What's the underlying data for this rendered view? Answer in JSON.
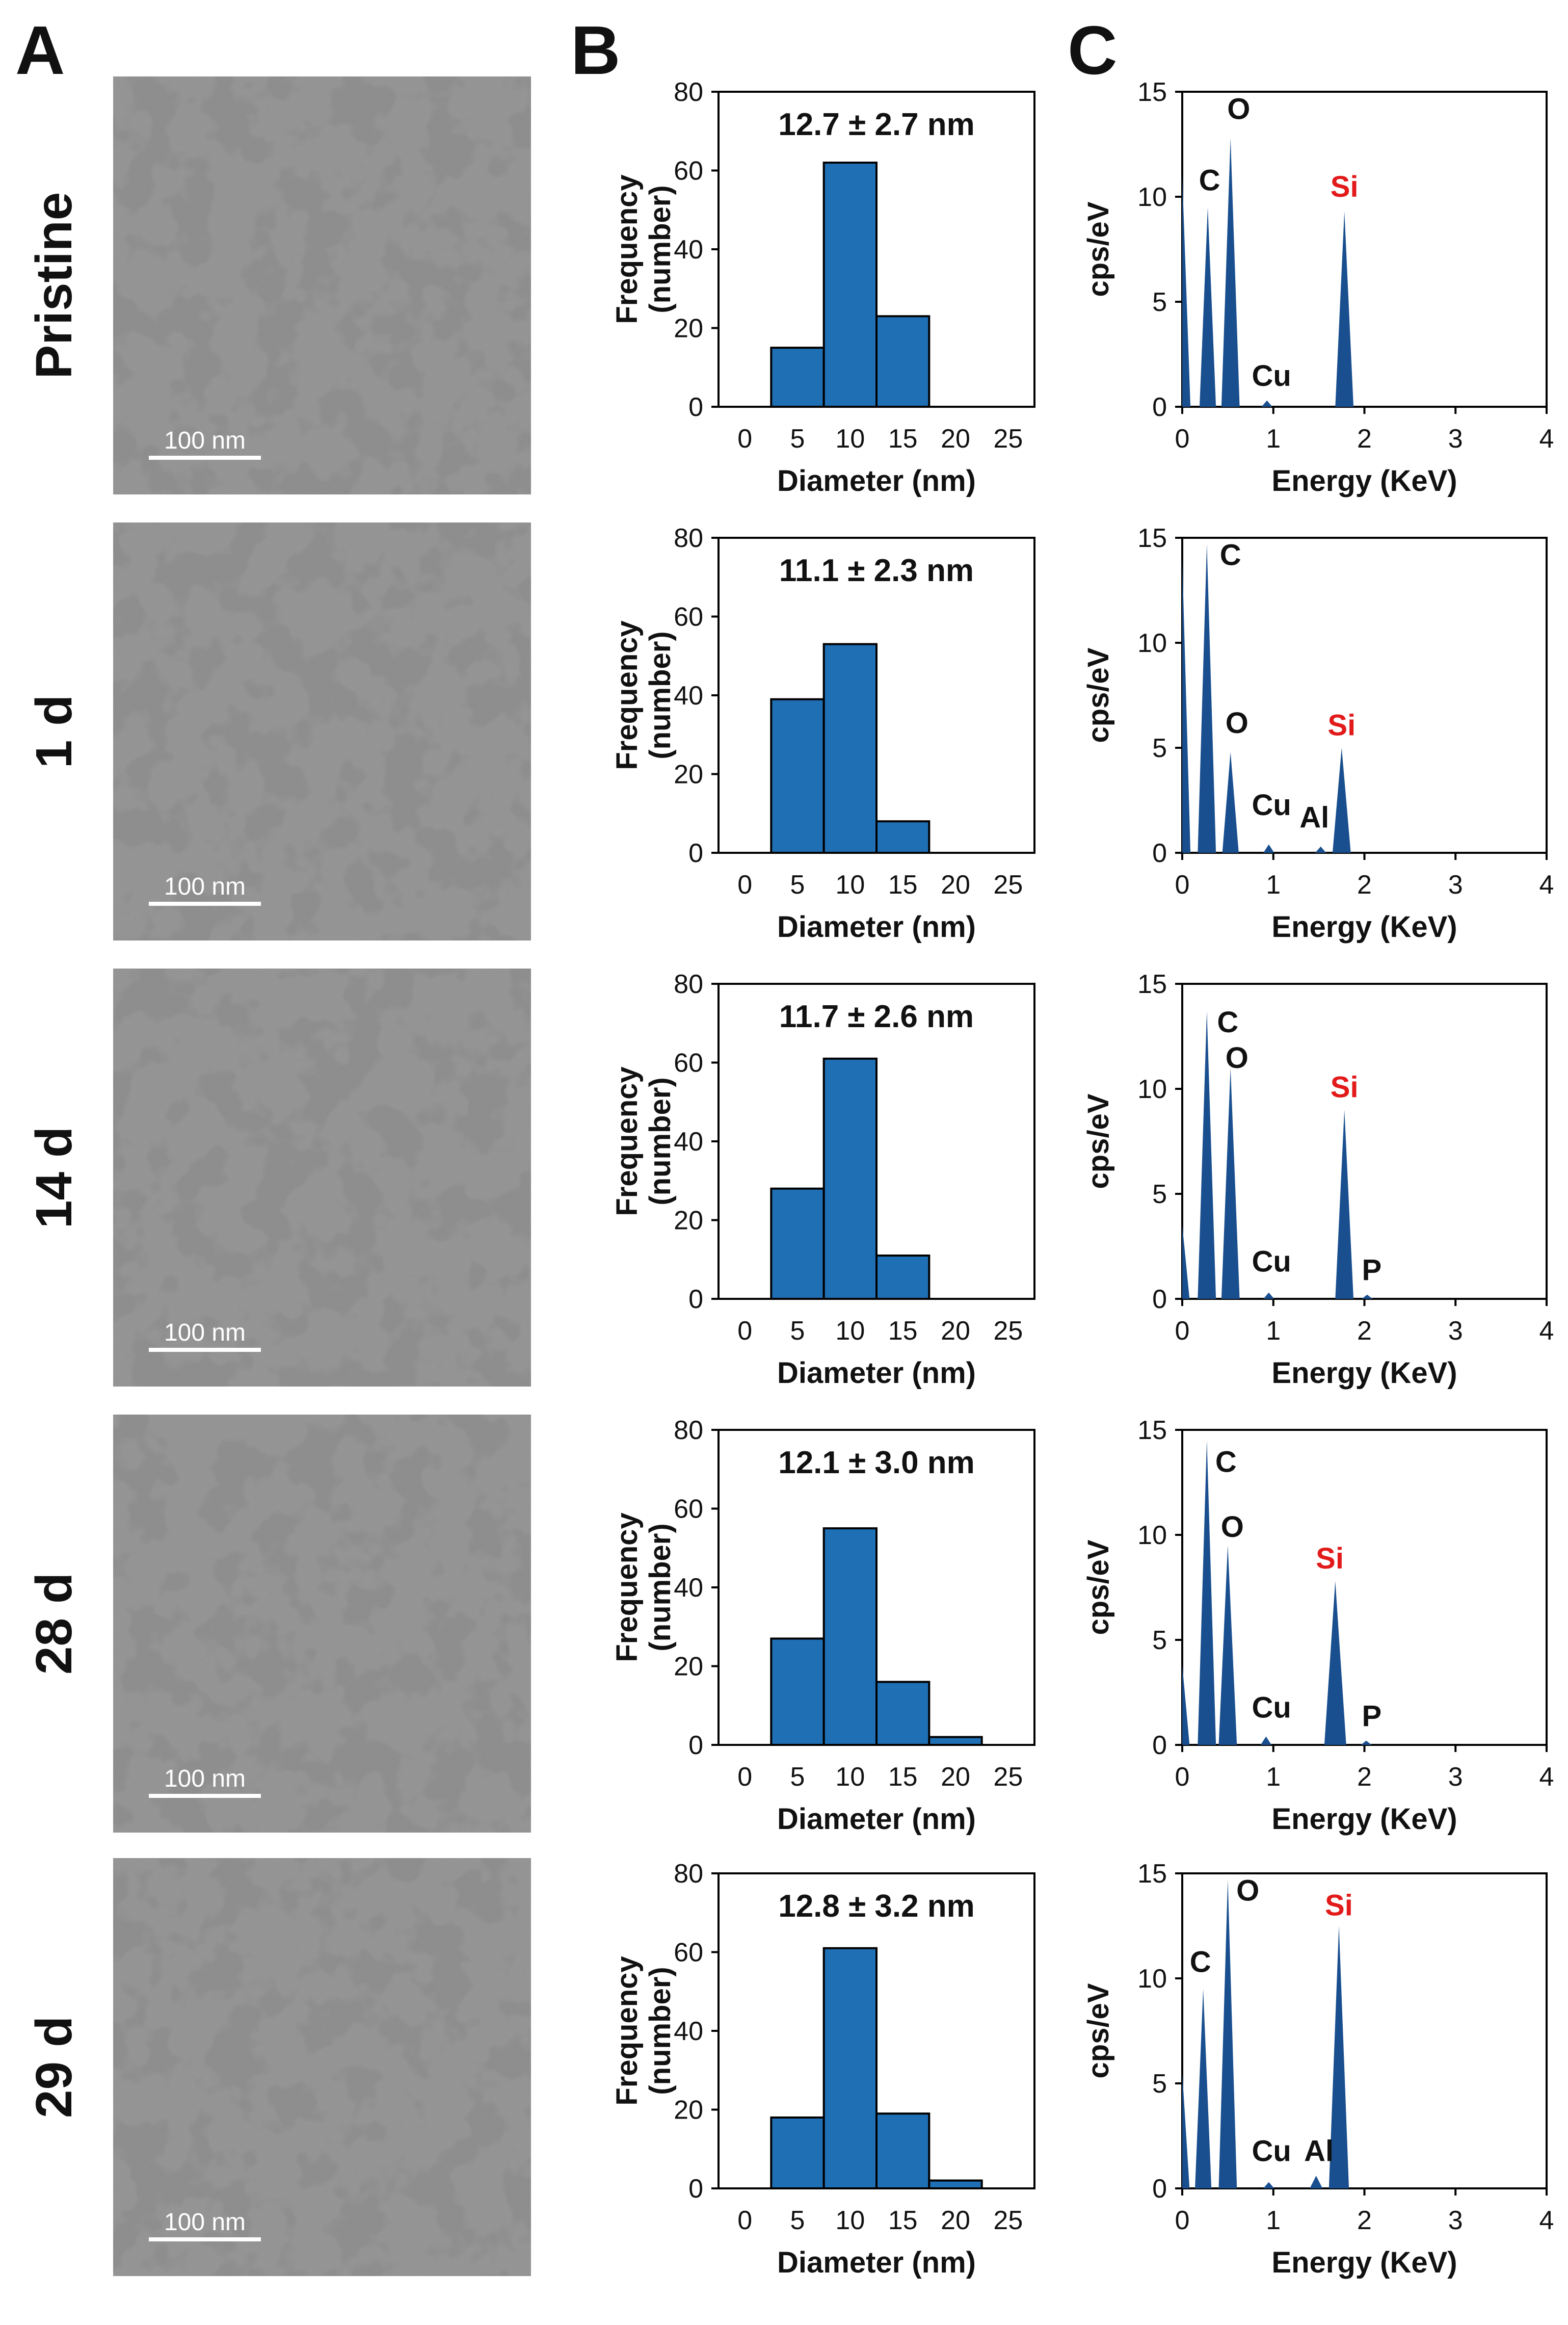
{
  "panels": {
    "a": "A",
    "b": "B",
    "c": "C"
  },
  "tem": {
    "rows": [
      "Pristine",
      "1 d",
      "14 d",
      "28 d",
      "29 d"
    ],
    "scale_label": "100 nm"
  },
  "colors": {
    "bar_fill": "#1f6fb5",
    "peak_fill": "#1a4f8f",
    "si_label": "#e21a1a",
    "tem_background": "#8c8c8c",
    "tem_particles": "#3a3a3a"
  },
  "chart_data": [
    {
      "type": "bar",
      "panel": "B",
      "row": "Pristine",
      "annotation": "12.7 ± 2.7 nm",
      "xlabel": "Diameter (nm)",
      "ylabel_line1": "Frequency",
      "ylabel_line2": "(number)",
      "xlim": [
        -2.5,
        27.5
      ],
      "ylim": [
        0,
        80
      ],
      "xticks": [
        0,
        5,
        10,
        15,
        20,
        25
      ],
      "yticks": [
        0,
        20,
        40,
        60,
        80
      ],
      "bins": [
        [
          2.5,
          7.5
        ],
        [
          7.5,
          12.5
        ],
        [
          12.5,
          17.5
        ]
      ],
      "values": [
        15,
        62,
        23
      ]
    },
    {
      "type": "bar",
      "panel": "B",
      "row": "1 d",
      "annotation": "11.1 ± 2.3 nm",
      "xlabel": "Diameter (nm)",
      "ylabel_line1": "Frequency",
      "ylabel_line2": "(number)",
      "xlim": [
        -2.5,
        27.5
      ],
      "ylim": [
        0,
        80
      ],
      "xticks": [
        0,
        5,
        10,
        15,
        20,
        25
      ],
      "yticks": [
        0,
        20,
        40,
        60,
        80
      ],
      "bins": [
        [
          2.5,
          7.5
        ],
        [
          7.5,
          12.5
        ],
        [
          12.5,
          17.5
        ]
      ],
      "values": [
        39,
        53,
        8
      ]
    },
    {
      "type": "bar",
      "panel": "B",
      "row": "14 d",
      "annotation": "11.7 ± 2.6 nm",
      "xlabel": "Diameter (nm)",
      "ylabel_line1": "Frequency",
      "ylabel_line2": "(number)",
      "xlim": [
        -2.5,
        27.5
      ],
      "ylim": [
        0,
        80
      ],
      "xticks": [
        0,
        5,
        10,
        15,
        20,
        25
      ],
      "yticks": [
        0,
        20,
        40,
        60,
        80
      ],
      "bins": [
        [
          2.5,
          7.5
        ],
        [
          7.5,
          12.5
        ],
        [
          12.5,
          17.5
        ]
      ],
      "values": [
        28,
        61,
        11
      ]
    },
    {
      "type": "bar",
      "panel": "B",
      "row": "28 d",
      "annotation": "12.1 ± 3.0 nm",
      "xlabel": "Diameter (nm)",
      "ylabel_line1": "Frequency",
      "ylabel_line2": "(number)",
      "xlim": [
        -2.5,
        27.5
      ],
      "ylim": [
        0,
        80
      ],
      "xticks": [
        0,
        5,
        10,
        15,
        20,
        25
      ],
      "yticks": [
        0,
        20,
        40,
        60,
        80
      ],
      "bins": [
        [
          2.5,
          7.5
        ],
        [
          7.5,
          12.5
        ],
        [
          12.5,
          17.5
        ],
        [
          17.5,
          22.5
        ]
      ],
      "values": [
        27,
        55,
        16,
        2
      ]
    },
    {
      "type": "bar",
      "panel": "B",
      "row": "29 d",
      "annotation": "12.8 ± 3.2 nm",
      "xlabel": "Diameter (nm)",
      "ylabel_line1": "Frequency",
      "ylabel_line2": "(number)",
      "xlim": [
        -2.5,
        27.5
      ],
      "ylim": [
        0,
        80
      ],
      "xticks": [
        0,
        5,
        10,
        15,
        20,
        25
      ],
      "yticks": [
        0,
        20,
        40,
        60,
        80
      ],
      "bins": [
        [
          2.5,
          7.5
        ],
        [
          7.5,
          12.5
        ],
        [
          12.5,
          17.5
        ],
        [
          17.5,
          22.5
        ]
      ],
      "values": [
        18,
        61,
        19,
        2
      ]
    },
    {
      "type": "area",
      "panel": "C",
      "row": "Pristine",
      "xlabel": "Energy (KeV)",
      "ylabel": "cps/eV",
      "xlim": [
        0,
        4
      ],
      "ylim": [
        0,
        15
      ],
      "xticks": [
        0,
        1,
        2,
        3,
        4
      ],
      "yticks": [
        0,
        5,
        10,
        15
      ],
      "peaks": [
        {
          "x": 0.0,
          "y": 11.0,
          "w": 0.09
        },
        {
          "x": 0.28,
          "y": 9.5,
          "w": 0.09
        },
        {
          "x": 0.53,
          "y": 12.8,
          "w": 0.1
        },
        {
          "x": 0.93,
          "y": 0.3,
          "w": 0.06
        },
        {
          "x": 1.78,
          "y": 9.3,
          "w": 0.1
        }
      ],
      "labels": [
        {
          "text": "O",
          "x": 0.62,
          "y": 13.7,
          "red": false
        },
        {
          "text": "C",
          "x": 0.3,
          "y": 10.3,
          "red": false
        },
        {
          "text": "Si",
          "x": 1.78,
          "y": 10.0,
          "red": true
        },
        {
          "text": "Cu",
          "x": 0.98,
          "y": 1.0,
          "red": false
        }
      ]
    },
    {
      "type": "area",
      "panel": "C",
      "row": "1 d",
      "xlabel": "Energy (KeV)",
      "ylabel": "cps/eV",
      "xlim": [
        0,
        4
      ],
      "ylim": [
        0,
        15
      ],
      "xticks": [
        0,
        1,
        2,
        3,
        4
      ],
      "yticks": [
        0,
        5,
        10,
        15
      ],
      "peaks": [
        {
          "x": 0.0,
          "y": 14.0,
          "w": 0.09
        },
        {
          "x": 0.27,
          "y": 14.7,
          "w": 0.1
        },
        {
          "x": 0.53,
          "y": 4.8,
          "w": 0.09
        },
        {
          "x": 0.95,
          "y": 0.4,
          "w": 0.06
        },
        {
          "x": 1.52,
          "y": 0.3,
          "w": 0.06
        },
        {
          "x": 1.75,
          "y": 5.0,
          "w": 0.1
        }
      ],
      "labels": [
        {
          "text": "C",
          "x": 0.53,
          "y": 13.7,
          "red": false
        },
        {
          "text": "O",
          "x": 0.6,
          "y": 5.7,
          "red": false
        },
        {
          "text": "Si",
          "x": 1.75,
          "y": 5.6,
          "red": true
        },
        {
          "text": "Cu",
          "x": 0.98,
          "y": 1.8,
          "red": false
        },
        {
          "text": "Al",
          "x": 1.45,
          "y": 1.2,
          "red": false
        }
      ]
    },
    {
      "type": "area",
      "panel": "C",
      "row": "14 d",
      "xlabel": "Energy (KeV)",
      "ylabel": "cps/eV",
      "xlim": [
        0,
        4
      ],
      "ylim": [
        0,
        15
      ],
      "xticks": [
        0,
        1,
        2,
        3,
        4
      ],
      "yticks": [
        0,
        5,
        10,
        15
      ],
      "peaks": [
        {
          "x": 0.0,
          "y": 3.5,
          "w": 0.08
        },
        {
          "x": 0.27,
          "y": 13.7,
          "w": 0.1
        },
        {
          "x": 0.53,
          "y": 11.0,
          "w": 0.1
        },
        {
          "x": 0.95,
          "y": 0.3,
          "w": 0.06
        },
        {
          "x": 1.78,
          "y": 9.0,
          "w": 0.1
        },
        {
          "x": 2.03,
          "y": 0.2,
          "w": 0.06
        }
      ],
      "labels": [
        {
          "text": "C",
          "x": 0.5,
          "y": 12.7,
          "red": false
        },
        {
          "text": "O",
          "x": 0.6,
          "y": 11.0,
          "red": false
        },
        {
          "text": "Si",
          "x": 1.78,
          "y": 9.6,
          "red": true
        },
        {
          "text": "Cu",
          "x": 0.98,
          "y": 1.3,
          "red": false
        },
        {
          "text": "P",
          "x": 2.08,
          "y": 0.9,
          "red": false
        }
      ]
    },
    {
      "type": "area",
      "panel": "C",
      "row": "28 d",
      "xlabel": "Energy (KeV)",
      "ylabel": "cps/eV",
      "xlim": [
        0,
        4
      ],
      "ylim": [
        0,
        15
      ],
      "xticks": [
        0,
        1,
        2,
        3,
        4
      ],
      "yticks": [
        0,
        5,
        10,
        15
      ],
      "peaks": [
        {
          "x": 0.0,
          "y": 3.8,
          "w": 0.08
        },
        {
          "x": 0.27,
          "y": 14.5,
          "w": 0.1
        },
        {
          "x": 0.5,
          "y": 9.5,
          "w": 0.1
        },
        {
          "x": 0.92,
          "y": 0.4,
          "w": 0.06
        },
        {
          "x": 1.68,
          "y": 7.8,
          "w": 0.12
        },
        {
          "x": 2.02,
          "y": 0.2,
          "w": 0.06
        }
      ],
      "labels": [
        {
          "text": "C",
          "x": 0.48,
          "y": 13.0,
          "red": false
        },
        {
          "text": "O",
          "x": 0.55,
          "y": 9.9,
          "red": false
        },
        {
          "text": "Si",
          "x": 1.62,
          "y": 8.4,
          "red": true
        },
        {
          "text": "Cu",
          "x": 0.98,
          "y": 1.3,
          "red": false
        },
        {
          "text": "P",
          "x": 2.08,
          "y": 0.9,
          "red": false
        }
      ]
    },
    {
      "type": "area",
      "panel": "C",
      "row": "29 d",
      "xlabel": "Energy (KeV)",
      "ylabel": "cps/eV",
      "xlim": [
        0,
        4
      ],
      "ylim": [
        0,
        15
      ],
      "xticks": [
        0,
        1,
        2,
        3,
        4
      ],
      "yticks": [
        0,
        5,
        10,
        15
      ],
      "peaks": [
        {
          "x": 0.0,
          "y": 5.5,
          "w": 0.08
        },
        {
          "x": 0.23,
          "y": 9.5,
          "w": 0.09
        },
        {
          "x": 0.5,
          "y": 14.7,
          "w": 0.1
        },
        {
          "x": 0.95,
          "y": 0.3,
          "w": 0.06
        },
        {
          "x": 1.47,
          "y": 0.6,
          "w": 0.07
        },
        {
          "x": 1.72,
          "y": 12.5,
          "w": 0.11
        }
      ],
      "labels": [
        {
          "text": "O",
          "x": 0.72,
          "y": 13.7,
          "red": false
        },
        {
          "text": "C",
          "x": 0.2,
          "y": 10.3,
          "red": false
        },
        {
          "text": "Si",
          "x": 1.72,
          "y": 13.0,
          "red": true
        },
        {
          "text": "Cu",
          "x": 0.98,
          "y": 1.3,
          "red": false
        },
        {
          "text": "Al",
          "x": 1.5,
          "y": 1.3,
          "red": false
        }
      ]
    }
  ]
}
